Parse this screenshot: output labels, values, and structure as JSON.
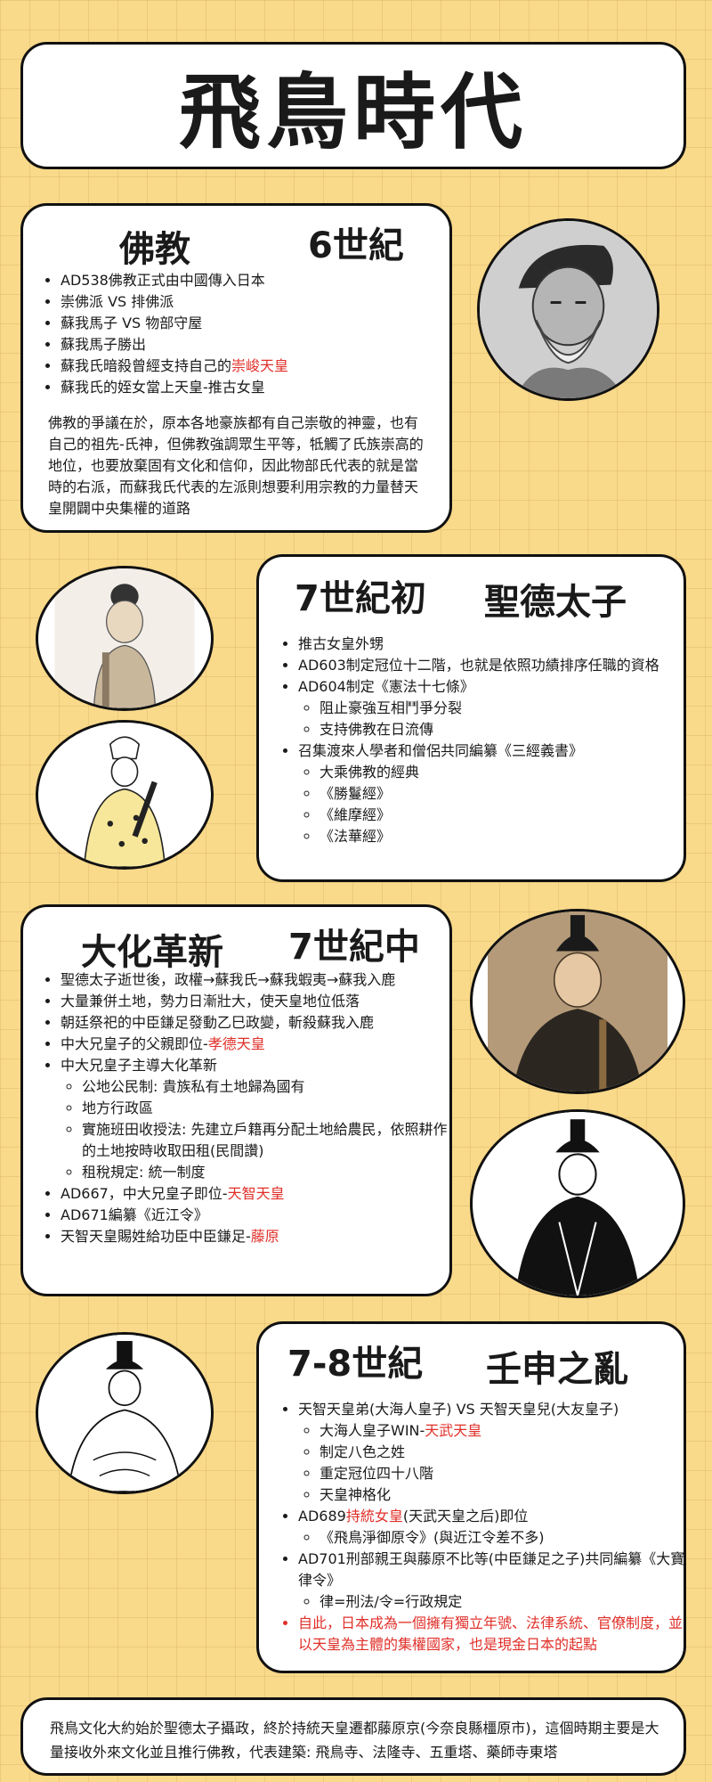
{
  "title": "飛鳥時代",
  "s1": {
    "topic": "佛教",
    "era": "6世紀",
    "items": [
      {
        "text": "AD538佛教正式由中國傳入日本"
      },
      {
        "text": "崇佛派 VS 排佛派"
      },
      {
        "text": "蘇我馬子 VS 物部守屋"
      },
      {
        "text": "蘇我馬子勝出"
      },
      {
        "text": "蘇我氏暗殺曾經支持自己的",
        "red": "崇峻天皇"
      },
      {
        "text": "蘇我氏的姪女當上天皇-推古女皇"
      }
    ],
    "paragraph": "佛教的爭議在於，原本各地豪族都有自己崇敬的神靈，也有自己的祖先-氏神，但佛教強調眾生平等，牴觸了氏族崇高的地位，也要放棄固有文化和信仰，因此物部氏代表的就是當時的右派，而蘇我氏代表的左派則想要利用宗教的力量替天皇開闢中央集權的道路"
  },
  "s2": {
    "era": "7世紀初",
    "topic": "聖德太子",
    "items": [
      {
        "text": "推古女皇外甥"
      },
      {
        "text": "AD603制定冠位十二階，也就是依照功績排序任職的資格"
      },
      {
        "text": "AD604制定《憲法十七條》",
        "sub": [
          "阻止豪強互相鬥爭分裂",
          "支持佛教在日流傳"
        ]
      },
      {
        "text": "召集渡來人學者和僧侶共同編纂《三經義書》",
        "sub": [
          "大乘佛教的經典",
          "《勝鬘經》",
          "《維摩經》",
          "《法華經》"
        ]
      }
    ]
  },
  "s3": {
    "topic": "大化革新",
    "era": "7世紀中",
    "items": [
      {
        "text": "聖德太子逝世後，政權→蘇我氏→蘇我蝦夷→蘇我入鹿"
      },
      {
        "text": "大量兼併土地，勢力日漸壯大，使天皇地位低落"
      },
      {
        "text": "朝廷祭祀的中臣鎌足發動乙巳政變，斬殺蘇我入鹿"
      },
      {
        "text": "中大兄皇子的父親即位-",
        "red": "孝德天皇"
      },
      {
        "text": "中大兄皇子主導大化革新",
        "sub": [
          "公地公民制: 貴族私有土地歸為國有",
          "地方行政區",
          "實施班田收授法: 先建立戶籍再分配土地給農民，依照耕作的土地按時收取田租(民間讚)",
          "租稅規定: 統一制度"
        ]
      },
      {
        "text": "AD667，中大兄皇子即位-",
        "red": "天智天皇"
      },
      {
        "text": "AD671編纂《近江令》"
      },
      {
        "text": "天智天皇賜姓給功臣中臣鎌足-",
        "red": "藤原"
      }
    ]
  },
  "s4": {
    "era": "7-8世紀",
    "topic": "壬申之亂",
    "items": [
      {
        "text": "天智天皇弟(大海人皇子) VS 天智天皇兒(大友皇子)",
        "sub": [
          {
            "text": "大海人皇子WIN-",
            "red": "天武天皇"
          },
          {
            "text": "制定八色之姓"
          },
          {
            "text": "重定冠位四十八階"
          },
          {
            "text": "天皇神格化"
          }
        ]
      },
      {
        "pre": "AD689",
        "red": "持統女皇",
        "text": "(天武天皇之后)即位",
        "sub": [
          {
            "text": "《飛鳥淨御原令》(與近江令差不多)"
          }
        ]
      },
      {
        "text": "AD701刑部親王與藤原不比等(中臣鎌足之子)共同編纂《大寶律令》",
        "sub": [
          {
            "text": "律=刑法/令=行政規定"
          }
        ]
      },
      {
        "text": "自此，日本成為一個擁有獨立年號、法律系統、官僚制度，並以天皇為主體的集權國家，也是現金日本的起點",
        "allred": true
      }
    ]
  },
  "footer": "飛鳥文化大約始於聖德太子攝政，終於持統天皇遷都藤原京(今奈良縣橿原市)，這個時期主要是大量接收外來文化並且推行佛教，代表建築: 飛鳥寺、法隆寺、五重塔、藥師寺東塔"
}
